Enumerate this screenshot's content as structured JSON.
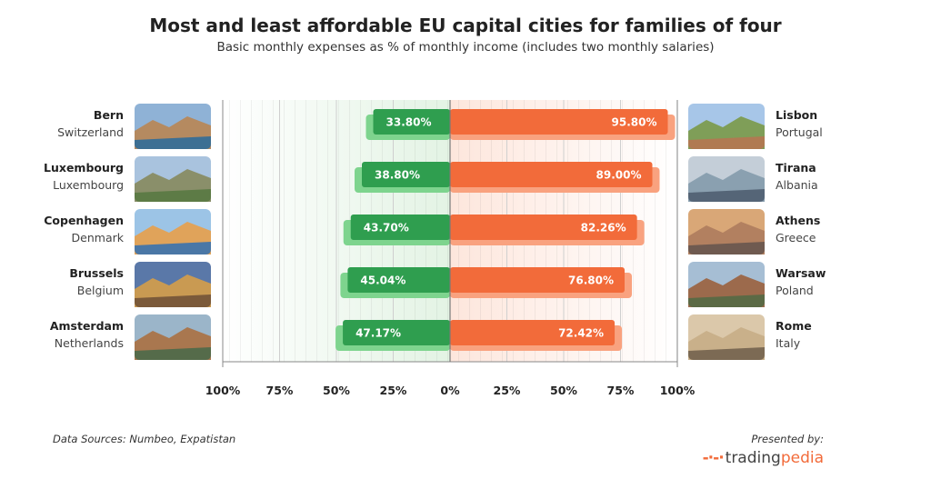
{
  "chart_data": {
    "type": "bar",
    "title": "Most and least affordable EU capital cities for families of four",
    "subtitle": "Basic monthly expenses as % of monthly income (includes two monthly salaries)",
    "xlim": [
      -100,
      100
    ],
    "tick_values": [
      -100,
      -75,
      -50,
      -25,
      0,
      25,
      50,
      75,
      100
    ],
    "tick_labels": [
      "100%",
      "75%",
      "50%",
      "25%",
      "0%",
      "25%",
      "50%",
      "75%",
      "100%"
    ],
    "grid": true,
    "series": [
      {
        "side": "left",
        "color": "#2f9e4f",
        "categories": [
          {
            "city": "Bern",
            "country": "Switzerland"
          },
          {
            "city": "Luxembourg",
            "country": "Luxembourg"
          },
          {
            "city": "Copenhagen",
            "country": "Denmark"
          },
          {
            "city": "Brussels",
            "country": "Belgium"
          },
          {
            "city": "Amsterdam",
            "country": "Netherlands"
          }
        ],
        "values": [
          33.8,
          38.8,
          43.7,
          45.04,
          47.17
        ],
        "labels": [
          "33.80%",
          "38.80%",
          "43.70%",
          "45.04%",
          "47.17%"
        ]
      },
      {
        "side": "right",
        "color": "#f26b3a",
        "categories": [
          {
            "city": "Lisbon",
            "country": "Portugal"
          },
          {
            "city": "Tirana",
            "country": "Albania"
          },
          {
            "city": "Athens",
            "country": "Greece"
          },
          {
            "city": "Warsaw",
            "country": "Poland"
          },
          {
            "city": "Rome",
            "country": "Italy"
          }
        ],
        "values": [
          95.8,
          89.0,
          82.26,
          76.8,
          72.42
        ],
        "labels": [
          "95.80%",
          "89.00%",
          "82.26%",
          "76.80%",
          "72.42%"
        ]
      }
    ]
  },
  "footer": {
    "sources": "Data Sources: Numbeo, Expatistan",
    "presented_by": "Presented by:",
    "brand_part1": "trading",
    "brand_part2": "pedia"
  }
}
